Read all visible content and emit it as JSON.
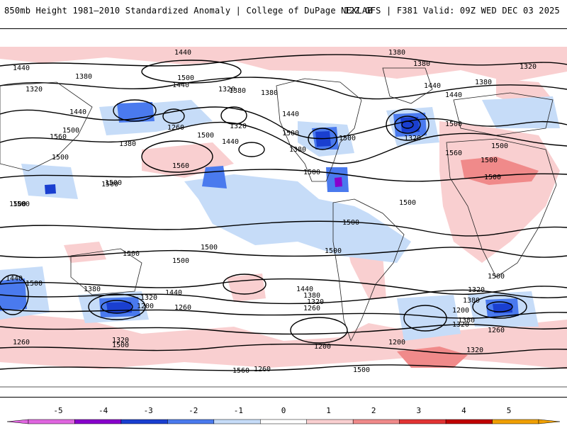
{
  "header": {
    "left_title": "850mb Height 1981–2010 Standardized Anomaly | College of DuPage NEXLAB",
    "right_title": "12Z GFS | F381 Valid: 09Z WED DEC 03 2025"
  },
  "colors": {
    "neg5": "#e066e0",
    "neg4": "#8800cc",
    "neg3": "#1a3fd0",
    "neg2": "#4a7aee",
    "neg1": "#c6dcf8",
    "zero": "#ffffff",
    "pos1": "#f9cfd0",
    "pos2": "#f08a8a",
    "pos3": "#e23434",
    "pos4": "#c00000",
    "pos5": "#f0a000"
  },
  "colorbar": {
    "ticks": [
      "-5",
      "-4",
      "-3",
      "-2",
      "-1",
      "0",
      "1",
      "2",
      "3",
      "4",
      "5"
    ]
  },
  "contour_labels": [
    "1440",
    "1380",
    "1440",
    "1500",
    "1380",
    "1440",
    "1320",
    "1380",
    "1320",
    "1440",
    "1380",
    "1440",
    "1440",
    "1380",
    "1320",
    "1380",
    "1440",
    "1500",
    "1260",
    "1320",
    "1500",
    "1380",
    "1380",
    "1500",
    "1560",
    "1500",
    "1440",
    "1560",
    "1320",
    "1500",
    "1560",
    "1500",
    "1500",
    "1500",
    "1500",
    "1500",
    "1500",
    "1500",
    "1500",
    "1500",
    "1500",
    "1500",
    "1500",
    "1500",
    "1440",
    "1500",
    "1380",
    "1320",
    "1200",
    "1440",
    "1260",
    "1440",
    "1380",
    "1320",
    "1260",
    "1380",
    "1320",
    "1200",
    "1260",
    "1320",
    "1380",
    "1260",
    "1200",
    "1200",
    "1320",
    "1260",
    "1320",
    "1500",
    "1500",
    "1560",
    "1500",
    "1500",
    "1500"
  ]
}
